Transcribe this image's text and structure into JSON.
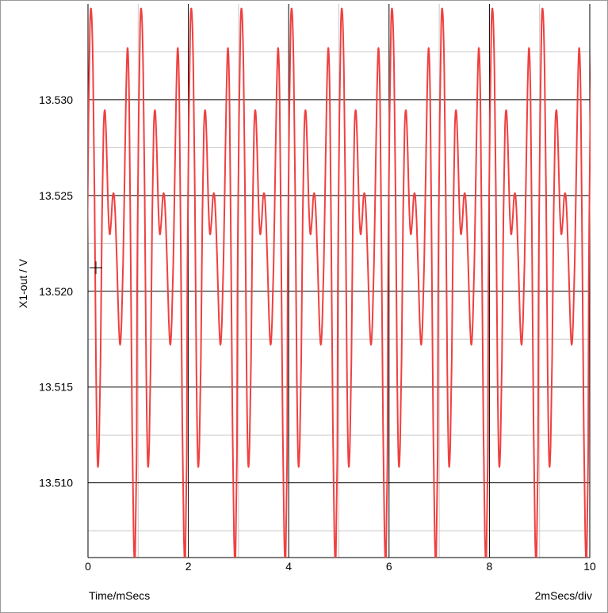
{
  "chart_data": {
    "type": "line",
    "ylabel": "X1-out / V",
    "xlabel": "Time/mSecs",
    "scale_label": "2mSecs/div",
    "xlim": [
      0,
      10
    ],
    "ylim": [
      13.5061,
      13.535
    ],
    "x_ticks": [
      "0",
      "2",
      "4",
      "6",
      "8",
      "10"
    ],
    "y_ticks": [
      "13.510",
      "13.515",
      "13.520",
      "13.525",
      "13.530"
    ],
    "grid": true,
    "line_color": "#f04040",
    "series": [
      {
        "waveform_period_ms": 1.0,
        "period_start_ms": -0.02,
        "period_points": [
          [
            0.0,
            13.5205
          ],
          [
            0.03,
            13.529
          ],
          [
            0.06,
            13.534
          ],
          [
            0.09,
            13.5345
          ],
          [
            0.12,
            13.5315
          ],
          [
            0.15,
            13.525
          ],
          [
            0.18,
            13.516
          ],
          [
            0.21,
            13.5111
          ],
          [
            0.24,
            13.512
          ],
          [
            0.27,
            13.5165
          ],
          [
            0.3,
            13.524
          ],
          [
            0.33,
            13.5285
          ],
          [
            0.36,
            13.5294
          ],
          [
            0.39,
            13.5275
          ],
          [
            0.42,
            13.5245
          ],
          [
            0.45,
            13.523
          ],
          [
            0.48,
            13.5236
          ],
          [
            0.51,
            13.5249
          ],
          [
            0.54,
            13.525
          ],
          [
            0.57,
            13.5236
          ],
          [
            0.6,
            13.5212
          ],
          [
            0.63,
            13.5185
          ],
          [
            0.66,
            13.5172
          ],
          [
            0.69,
            13.5185
          ],
          [
            0.72,
            13.5215
          ],
          [
            0.75,
            13.526
          ],
          [
            0.78,
            13.5305
          ],
          [
            0.81,
            13.5327
          ],
          [
            0.84,
            13.53
          ],
          [
            0.87,
            13.522
          ],
          [
            0.9,
            13.513
          ],
          [
            0.93,
            13.5072
          ],
          [
            0.96,
            13.5062
          ],
          [
            0.99,
            13.512
          ],
          [
            1.0,
            13.5205
          ]
        ]
      }
    ]
  }
}
